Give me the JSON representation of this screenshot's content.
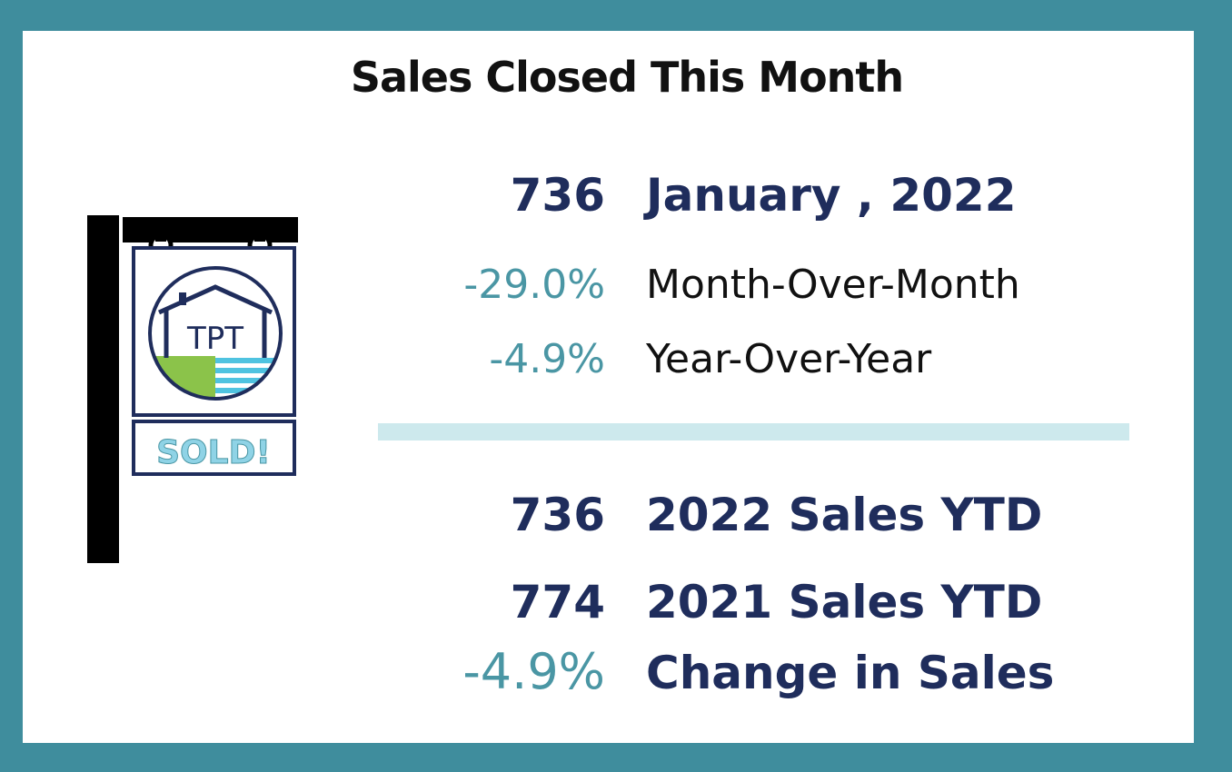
{
  "title": "Sales Closed This Month",
  "monthly": {
    "count": "736",
    "period": "January , 2022",
    "mom_change": "-29.0%",
    "mom_label": "Month-Over-Month",
    "yoy_change": "-4.9%",
    "yoy_label": "Year-Over-Year"
  },
  "ytd": {
    "current_count": "736",
    "current_label": "2022 Sales YTD",
    "prior_count": "774",
    "prior_label": "2021 Sales YTD",
    "change": "-4.9%",
    "change_label": "Change in Sales"
  },
  "sign": {
    "logo_text": "TPT",
    "sold_text": "SOLD!"
  },
  "colors": {
    "border": "#3f8d9d",
    "navy": "#1f2d5c",
    "teal": "#4a96a4",
    "divider": "#cde9ed",
    "grass": "#8bc34a",
    "water": "#4fc3e0"
  }
}
